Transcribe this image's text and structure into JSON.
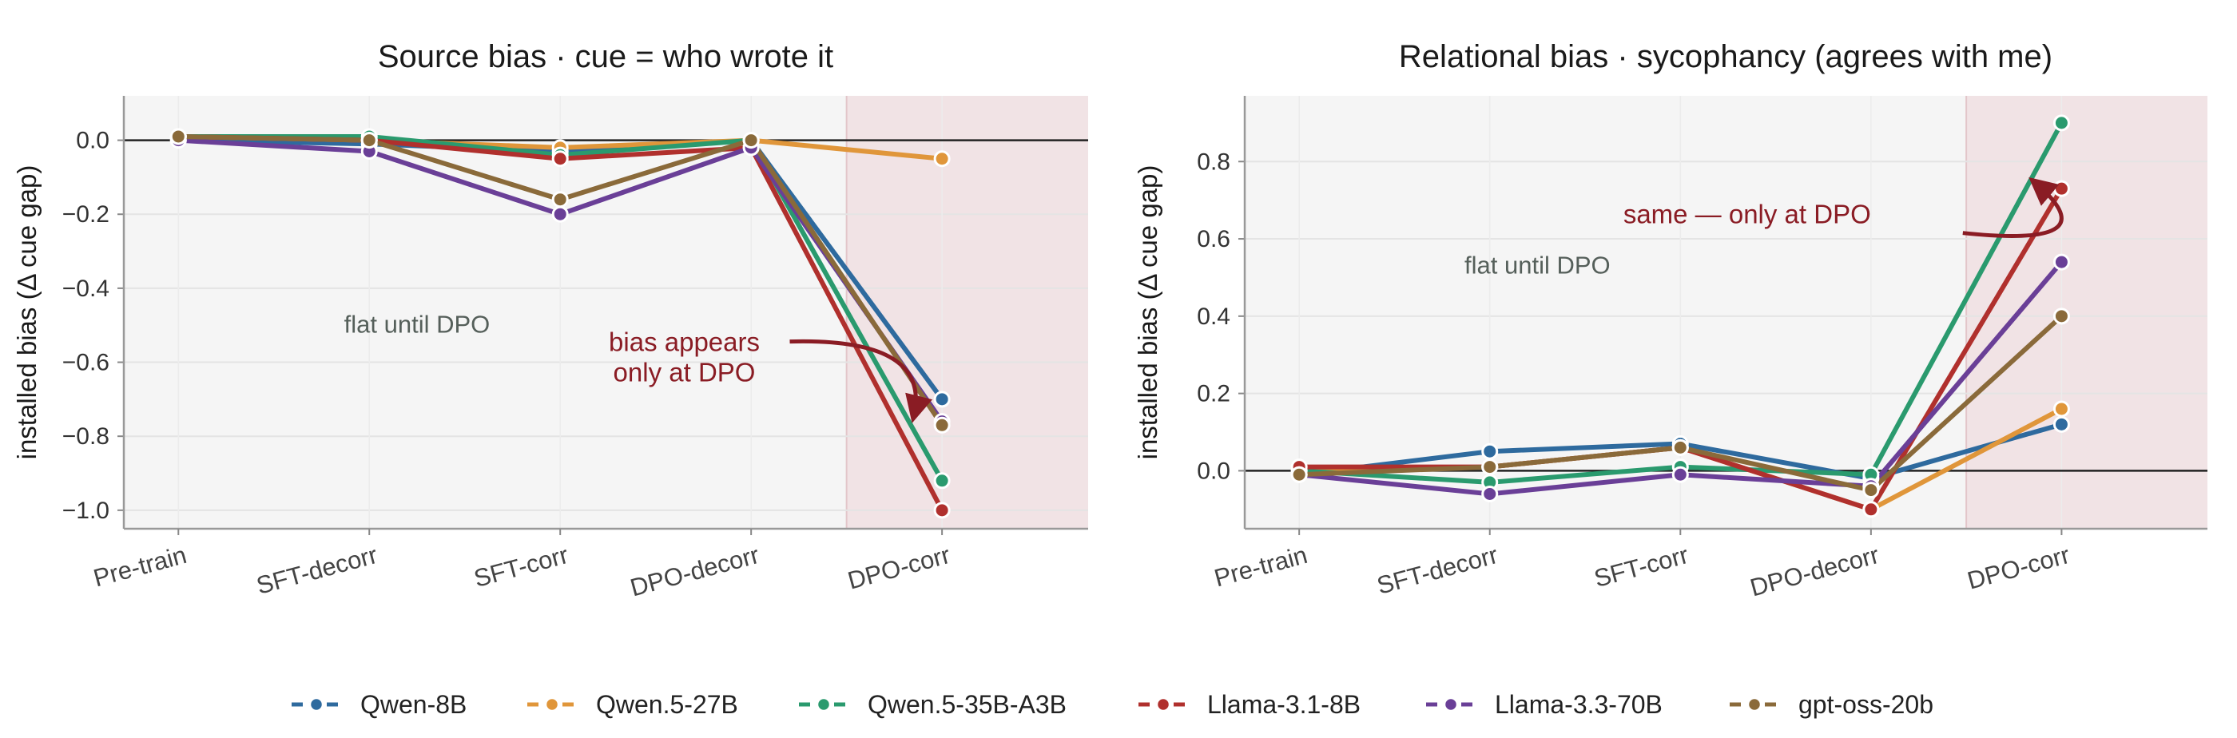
{
  "chart_data": [
    {
      "type": "line",
      "title": "Source bias  ·  cue = who wrote it",
      "ylabel": "installed bias  (Δ cue gap)",
      "xlabel": "",
      "categories": [
        "Pre-train",
        "SFT-decorr",
        "SFT-corr",
        "DPO-decorr",
        "DPO-corr"
      ],
      "ylim": [
        -1.05,
        0.12
      ],
      "yticks": [
        0.0,
        -0.2,
        -0.4,
        -0.6,
        -0.8,
        -1.0
      ],
      "ytick_labels": [
        "0.0",
        "−0.2",
        "−0.4",
        "−0.6",
        "−0.8",
        "−1.0"
      ],
      "grid": true,
      "highlight_category": "DPO-corr",
      "zero_line": true,
      "series": [
        {
          "name": "Qwen-8B",
          "values": [
            0.0,
            -0.01,
            -0.03,
            0.0,
            -0.7
          ]
        },
        {
          "name": "Qwen.5-27B",
          "values": [
            0.01,
            0.0,
            -0.02,
            0.0,
            -0.05
          ]
        },
        {
          "name": "Qwen.5-35B-A3B",
          "values": [
            0.01,
            0.01,
            -0.04,
            0.0,
            -0.92
          ]
        },
        {
          "name": "Llama-3.1-8B",
          "values": [
            0.01,
            0.0,
            -0.05,
            -0.02,
            -1.0
          ]
        },
        {
          "name": "Llama-3.3-70B",
          "values": [
            0.0,
            -0.03,
            -0.2,
            -0.02,
            -0.76
          ]
        },
        {
          "name": "gpt-oss-20b",
          "values": [
            0.01,
            0.0,
            -0.16,
            0.0,
            -0.77
          ]
        }
      ],
      "annotations": [
        {
          "text": "flat until DPO",
          "x": 1.25,
          "y": -0.52,
          "style": "gray"
        },
        {
          "lines": [
            "bias appears",
            "only at DPO"
          ],
          "x": 2.65,
          "y": -0.57,
          "style": "red",
          "arrow_to": [
            3.85,
            -0.75
          ]
        }
      ]
    },
    {
      "type": "line",
      "title": "Relational bias  ·  sycophancy (agrees with me)",
      "ylabel": "installed bias  (Δ cue gap)",
      "xlabel": "",
      "categories": [
        "Pre-train",
        "SFT-decorr",
        "SFT-corr",
        "DPO-decorr",
        "DPO-corr"
      ],
      "ylim": [
        -0.15,
        0.97
      ],
      "yticks": [
        0.0,
        0.2,
        0.4,
        0.6,
        0.8
      ],
      "ytick_labels": [
        "0.0",
        "0.2",
        "0.4",
        "0.6",
        "0.8"
      ],
      "grid": true,
      "highlight_category": "DPO-corr",
      "zero_line": true,
      "series": [
        {
          "name": "Qwen-8B",
          "values": [
            -0.01,
            0.05,
            0.07,
            -0.02,
            0.12
          ]
        },
        {
          "name": "Qwen.5-27B",
          "values": [
            0.0,
            0.01,
            0.06,
            -0.1,
            0.16
          ]
        },
        {
          "name": "Qwen.5-35B-A3B",
          "values": [
            0.0,
            -0.03,
            0.01,
            -0.01,
            0.9
          ]
        },
        {
          "name": "Llama-3.1-8B",
          "values": [
            0.01,
            0.01,
            0.06,
            -0.1,
            0.73
          ]
        },
        {
          "name": "Llama-3.3-70B",
          "values": [
            -0.01,
            -0.06,
            -0.01,
            -0.04,
            0.54
          ]
        },
        {
          "name": "gpt-oss-20b",
          "values": [
            -0.01,
            0.01,
            0.06,
            -0.05,
            0.4
          ]
        }
      ],
      "annotations": [
        {
          "text": "flat until DPO",
          "x": 1.25,
          "y": 0.51,
          "style": "gray"
        },
        {
          "lines": [
            "same — only at DPO"
          ],
          "x": 2.35,
          "y": 0.64,
          "style": "red",
          "arrow_to": [
            3.85,
            0.75
          ]
        }
      ]
    }
  ],
  "legend": {
    "placement": "bottom-center",
    "items": [
      {
        "name": "Qwen-8B",
        "color": "#2e6a9e"
      },
      {
        "name": "Qwen.5-27B",
        "color": "#e0963a"
      },
      {
        "name": "Qwen.5-35B-A3B",
        "color": "#2a9a6e"
      },
      {
        "name": "Llama-3.1-8B",
        "color": "#b0302d"
      },
      {
        "name": "Llama-3.3-70B",
        "color": "#6a3f97"
      },
      {
        "name": "gpt-oss-20b",
        "color": "#8a6a3a"
      }
    ]
  },
  "colors": {
    "plot_bg": "#f5f5f5",
    "highlight_bg": "#f1e3e5",
    "annotation_red": "#8a1c24",
    "annotation_gray": "#555f5a"
  }
}
